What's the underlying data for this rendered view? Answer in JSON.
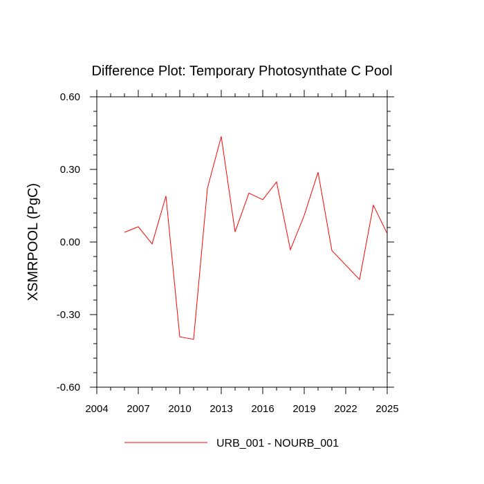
{
  "chart_data": {
    "type": "line",
    "title": "Difference Plot: Temporary Photosynthate C Pool",
    "xlabel": "",
    "ylabel": "XSMRPOOL  (PgC)",
    "xlim": [
      2004,
      2025
    ],
    "ylim": [
      -0.6,
      0.6
    ],
    "x_ticks": [
      2004,
      2007,
      2010,
      2013,
      2016,
      2019,
      2022,
      2025
    ],
    "y_ticks": [
      -0.6,
      -0.3,
      0.0,
      0.3,
      0.6
    ],
    "y_tick_labels": [
      "-0.60",
      "-0.30",
      "0.00",
      "0.30",
      "0.60"
    ],
    "grid": false,
    "legend_position": "bottom",
    "series": [
      {
        "name": "URB_001 - NOURB_001",
        "color": "#ff0000",
        "x": [
          2006,
          2007,
          2008,
          2009,
          2010,
          2011,
          2012,
          2013,
          2014,
          2015,
          2016,
          2017,
          2018,
          2019,
          2020,
          2021,
          2022,
          2023,
          2024,
          2025
        ],
        "values": [
          0.04,
          0.063,
          -0.008,
          0.19,
          -0.392,
          -0.402,
          0.222,
          0.436,
          0.042,
          0.202,
          0.175,
          0.248,
          -0.032,
          0.11,
          0.288,
          -0.035,
          -0.095,
          -0.155,
          0.152,
          0.035
        ]
      }
    ]
  }
}
